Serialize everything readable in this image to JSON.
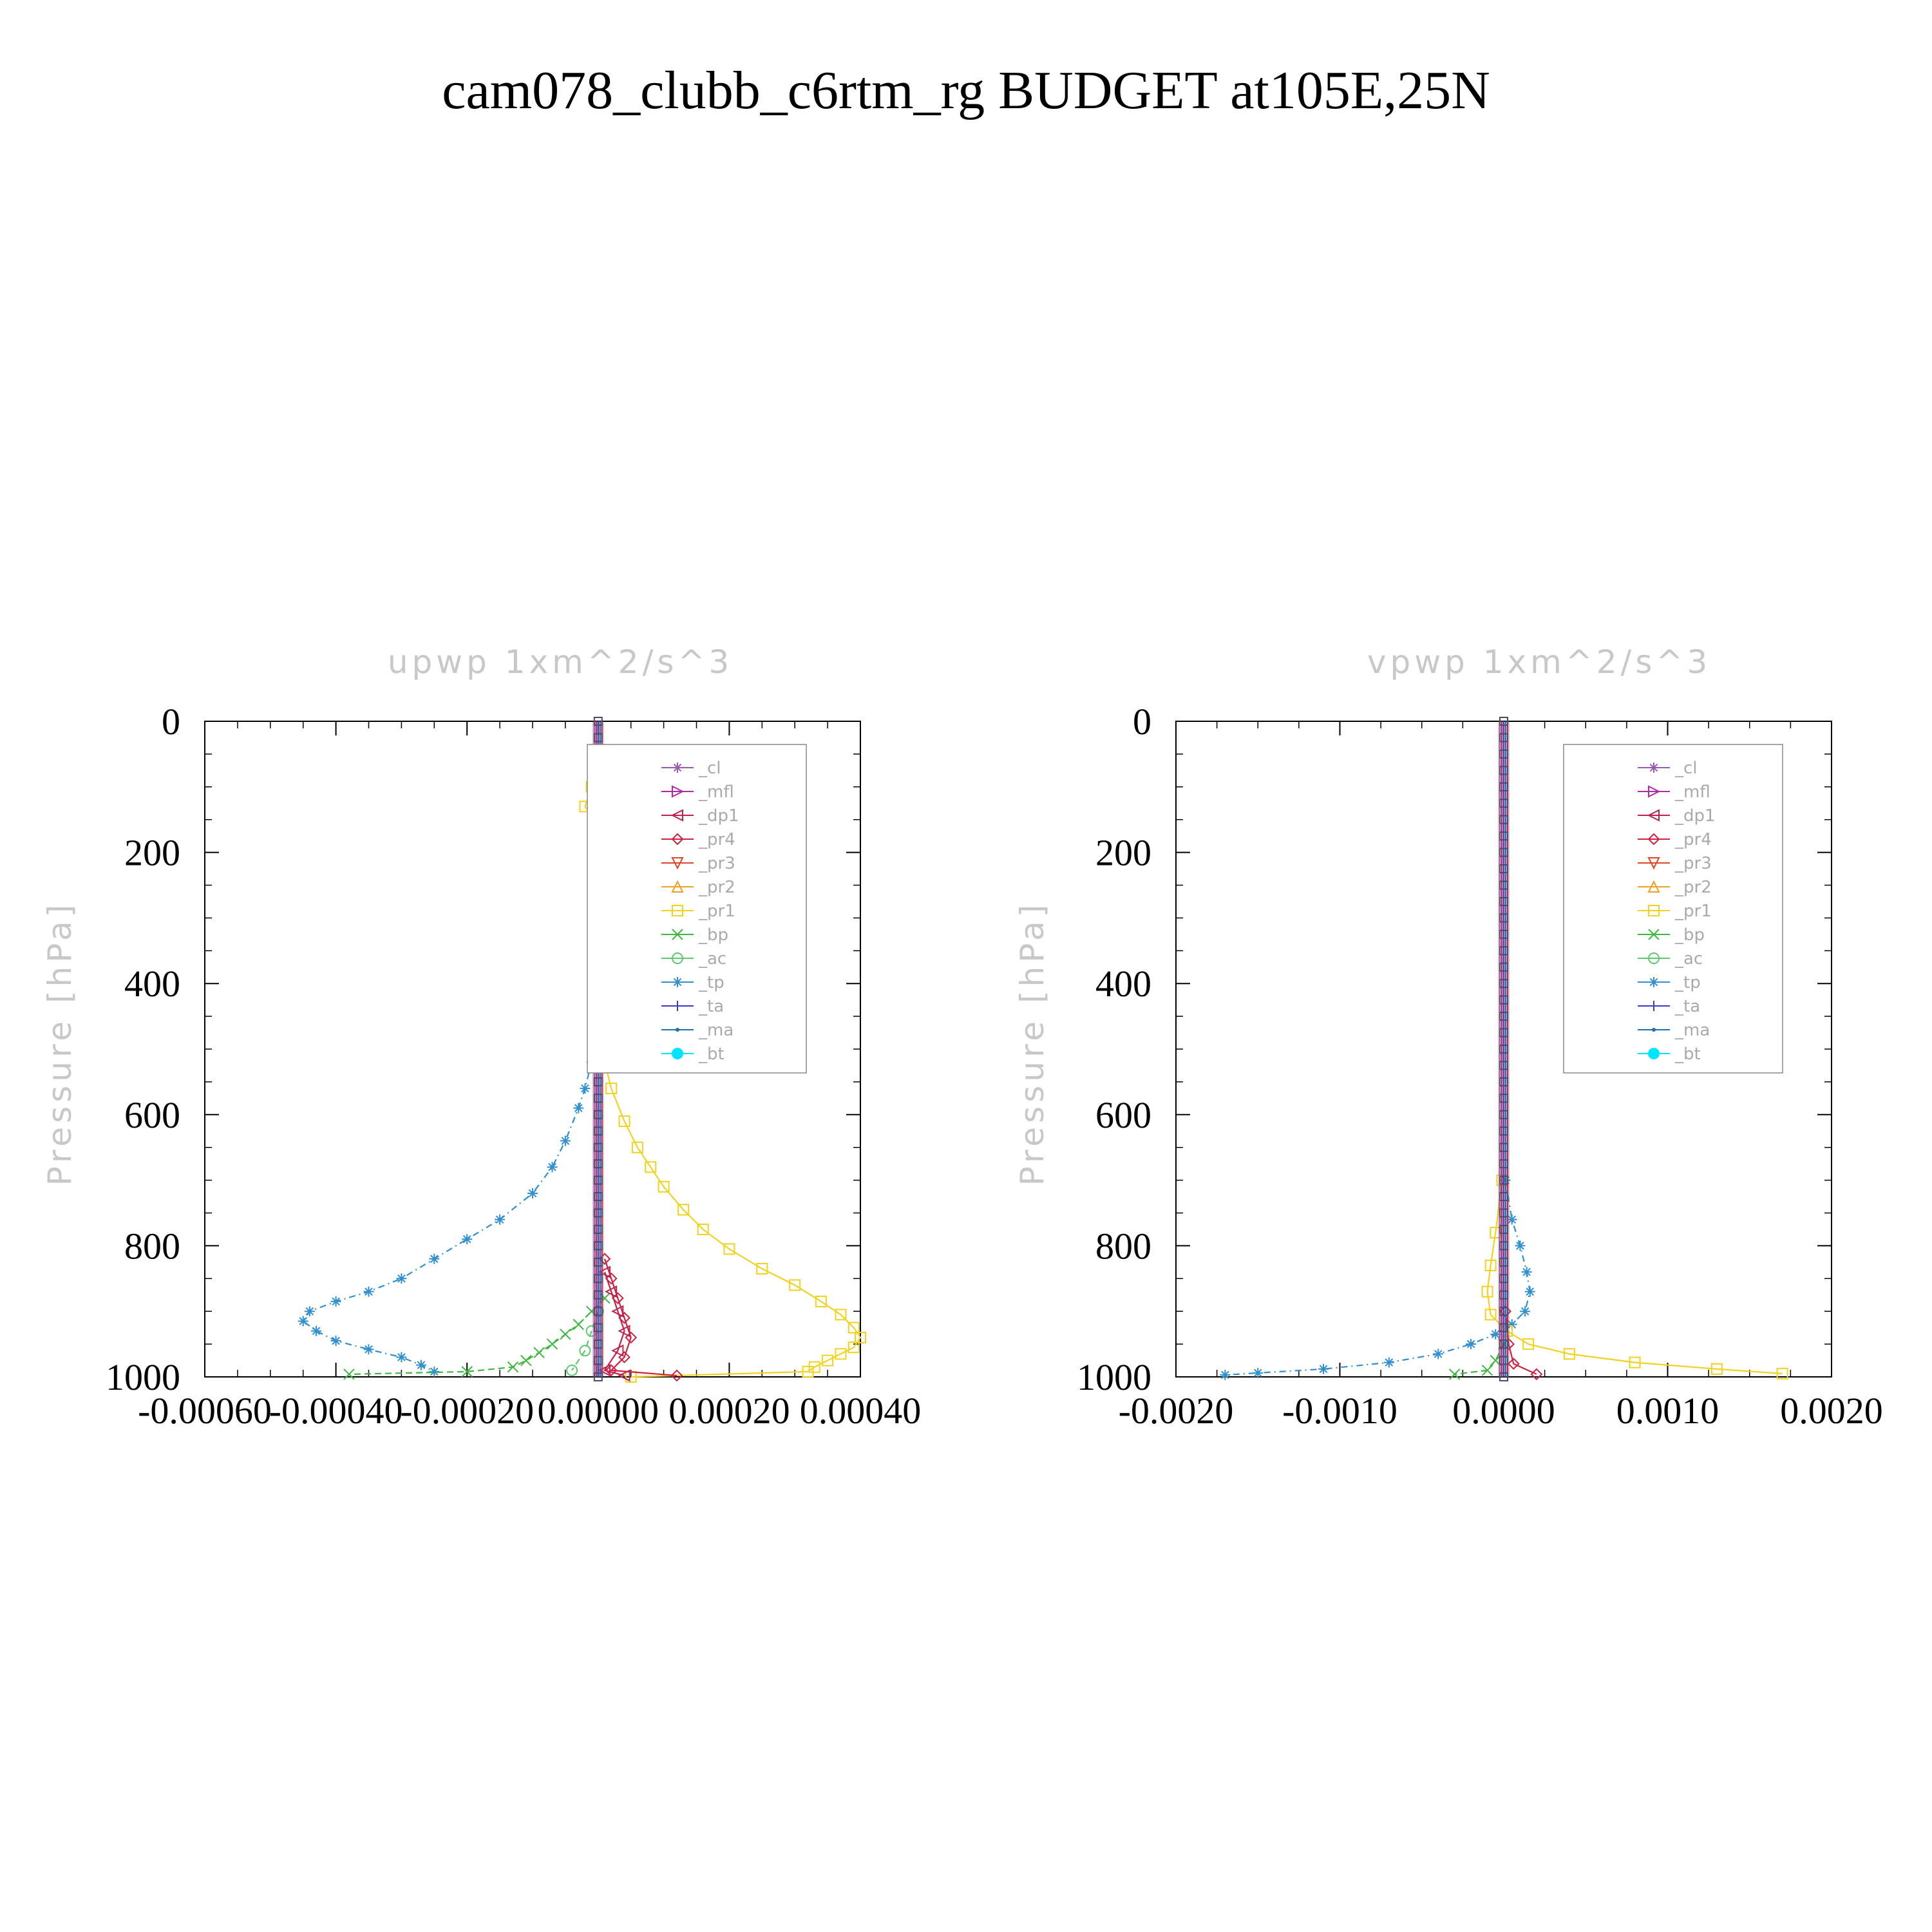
{
  "figure": {
    "title": "cam078_clubb_c6rtm_rg  BUDGET at105E,25N",
    "ylabel": "Pressure [hPa]"
  },
  "legend": {
    "entries": [
      {
        "label": "_cl",
        "color": "#9b59b6",
        "marker": "star"
      },
      {
        "label": "_mfl",
        "color": "#b02aa8",
        "marker": "tri-right"
      },
      {
        "label": "_dp1",
        "color": "#c0224f",
        "marker": "tri-left"
      },
      {
        "label": "_pr4",
        "color": "#d02040",
        "marker": "diamond"
      },
      {
        "label": "_pr3",
        "color": "#e0472a",
        "marker": "tri-down"
      },
      {
        "label": "_pr2",
        "color": "#f0a020",
        "marker": "tri-up"
      },
      {
        "label": "_pr1",
        "color": "#f2d21c",
        "marker": "square"
      },
      {
        "label": "_bp",
        "color": "#3cb83c",
        "marker": "x"
      },
      {
        "label": "_ac",
        "color": "#5ec86e",
        "marker": "circle"
      },
      {
        "label": "_tp",
        "color": "#2f8fd0",
        "marker": "asterisk"
      },
      {
        "label": "_ta",
        "color": "#3b3bd0",
        "marker": "plus"
      },
      {
        "label": "_ma",
        "color": "#1f6fb0",
        "marker": "dot"
      },
      {
        "label": "_bt",
        "color": "#00e5ff",
        "marker": "bigdot"
      }
    ]
  },
  "chart_data": [
    {
      "type": "line",
      "title": "upwp   1xm^2/s^3",
      "ylabel": "Pressure [hPa]",
      "xlim": [
        -0.0006,
        0.0004
      ],
      "ylim": [
        1000,
        0
      ],
      "yticks": [
        "0",
        "200",
        "400",
        "600",
        "800",
        "1000"
      ],
      "xticks": [
        "-0.00060",
        "-0.00040",
        "-0.00020",
        "0.00000",
        "0.00020",
        "0.00040"
      ],
      "legend_position": "top-right",
      "series": [
        {
          "name": "_tp",
          "color": "#2f8fd0",
          "marker": "asterisk",
          "dash": "10,6,2,6",
          "points": [
            [
              1e-05,
              100
            ],
            [
              3e-05,
              120
            ],
            [
              2e-05,
              150
            ],
            [
              -1e-05,
              520
            ],
            [
              -2e-05,
              560
            ],
            [
              -3e-05,
              590
            ],
            [
              -5e-05,
              640
            ],
            [
              -7e-05,
              680
            ],
            [
              -0.0001,
              720
            ],
            [
              -0.00015,
              760
            ],
            [
              -0.0002,
              790
            ],
            [
              -0.00025,
              820
            ],
            [
              -0.0003,
              850
            ],
            [
              -0.00035,
              870
            ],
            [
              -0.0004,
              885
            ],
            [
              -0.00044,
              900
            ],
            [
              -0.00045,
              915
            ],
            [
              -0.00043,
              930
            ],
            [
              -0.0004,
              945
            ],
            [
              -0.00035,
              958
            ],
            [
              -0.0003,
              970
            ],
            [
              -0.00027,
              982
            ],
            [
              -0.00025,
              992
            ]
          ]
        },
        {
          "name": "_pr1",
          "color": "#f2d21c",
          "marker": "square",
          "dash": "",
          "points": [
            [
              -1e-05,
              100
            ],
            [
              -2e-05,
              130
            ],
            [
              1e-05,
              170
            ],
            [
              1e-05,
              520
            ],
            [
              2e-05,
              560
            ],
            [
              4e-05,
              610
            ],
            [
              6e-05,
              650
            ],
            [
              8e-05,
              680
            ],
            [
              0.0001,
              710
            ],
            [
              0.00013,
              745
            ],
            [
              0.00016,
              775
            ],
            [
              0.0002,
              805
            ],
            [
              0.00025,
              835
            ],
            [
              0.0003,
              860
            ],
            [
              0.00034,
              885
            ],
            [
              0.00037,
              905
            ],
            [
              0.00039,
              925
            ],
            [
              0.0004,
              940
            ],
            [
              0.00039,
              955
            ],
            [
              0.00037,
              965
            ],
            [
              0.00035,
              975
            ],
            [
              0.00033,
              985
            ],
            [
              0.00032,
              992
            ],
            [
              5e-05,
              1000
            ]
          ]
        },
        {
          "name": "_bp",
          "color": "#3cb83c",
          "marker": "x",
          "dash": "10,6",
          "points": [
            [
              1e-05,
              880
            ],
            [
              -1e-05,
              900
            ],
            [
              -3e-05,
              920
            ],
            [
              -5e-05,
              935
            ],
            [
              -7e-05,
              950
            ],
            [
              -9e-05,
              963
            ],
            [
              -0.00011,
              975
            ],
            [
              -0.00013,
              985
            ],
            [
              -0.0002,
              992
            ],
            [
              -0.00038,
              996
            ]
          ]
        },
        {
          "name": "_pr4",
          "color": "#d02040",
          "marker": "diamond",
          "dash": "",
          "points": [
            [
              1e-05,
              820
            ],
            [
              2e-05,
              850
            ],
            [
              3e-05,
              880
            ],
            [
              4e-05,
              910
            ],
            [
              5e-05,
              940
            ],
            [
              4e-05,
              970
            ],
            [
              2e-05,
              990
            ],
            [
              0.00012,
              998
            ]
          ]
        },
        {
          "name": "_dp1",
          "color": "#c0224f",
          "marker": "tri-left",
          "dash": "",
          "points": [
            [
              1e-05,
              840
            ],
            [
              2e-05,
              870
            ],
            [
              3e-05,
              900
            ],
            [
              4e-05,
              930
            ],
            [
              3e-05,
              960
            ],
            [
              1e-05,
              990
            ],
            [
              4e-05,
              998
            ]
          ]
        },
        {
          "name": "_ac",
          "color": "#5ec86e",
          "marker": "circle",
          "dash": "10,6",
          "points": [
            [
              0.0,
              900
            ],
            [
              -1e-05,
              930
            ],
            [
              -2e-05,
              960
            ],
            [
              -4e-05,
              990
            ]
          ]
        }
      ]
    },
    {
      "type": "line",
      "title": "vpwp   1xm^2/s^3",
      "ylabel": "Pressure [hPa]",
      "xlim": [
        -0.002,
        0.002
      ],
      "ylim": [
        1000,
        0
      ],
      "yticks": [
        "0",
        "200",
        "400",
        "600",
        "800",
        "1000"
      ],
      "xticks": [
        "-0.0020",
        "-0.0010",
        "0.0000",
        "0.0010",
        "0.0020"
      ],
      "legend_position": "top-right",
      "series": [
        {
          "name": "_tp",
          "color": "#2f8fd0",
          "marker": "asterisk",
          "dash": "10,6,2,6",
          "points": [
            [
              1e-05,
              700
            ],
            [
              5e-05,
              760
            ],
            [
              0.0001,
              800
            ],
            [
              0.00014,
              840
            ],
            [
              0.00016,
              870
            ],
            [
              0.00013,
              900
            ],
            [
              5e-05,
              920
            ],
            [
              -5e-05,
              935
            ],
            [
              -0.0002,
              950
            ],
            [
              -0.0004,
              965
            ],
            [
              -0.0007,
              978
            ],
            [
              -0.0011,
              988
            ],
            [
              -0.0015,
              994
            ],
            [
              -0.0017,
              997
            ]
          ]
        },
        {
          "name": "_pr1",
          "color": "#f2d21c",
          "marker": "square",
          "dash": "",
          "points": [
            [
              -1e-05,
              700
            ],
            [
              -5e-05,
              780
            ],
            [
              -8e-05,
              830
            ],
            [
              -0.0001,
              870
            ],
            [
              -8e-05,
              905
            ],
            [
              2e-05,
              930
            ],
            [
              0.00015,
              950
            ],
            [
              0.0004,
              965
            ],
            [
              0.0008,
              978
            ],
            [
              0.0013,
              988
            ],
            [
              0.0017,
              995
            ]
          ]
        },
        {
          "name": "_pr4",
          "color": "#d02040",
          "marker": "diamond",
          "dash": "",
          "points": [
            [
              1e-05,
              900
            ],
            [
              3e-05,
              950
            ],
            [
              6e-05,
              980
            ],
            [
              0.0002,
              996
            ]
          ]
        },
        {
          "name": "_bp",
          "color": "#3cb83c",
          "marker": "x",
          "dash": "10,6",
          "points": [
            [
              0.0,
              950
            ],
            [
              -5e-05,
              975
            ],
            [
              -0.0001,
              990
            ],
            [
              -0.0003,
              996
            ]
          ]
        }
      ]
    }
  ]
}
